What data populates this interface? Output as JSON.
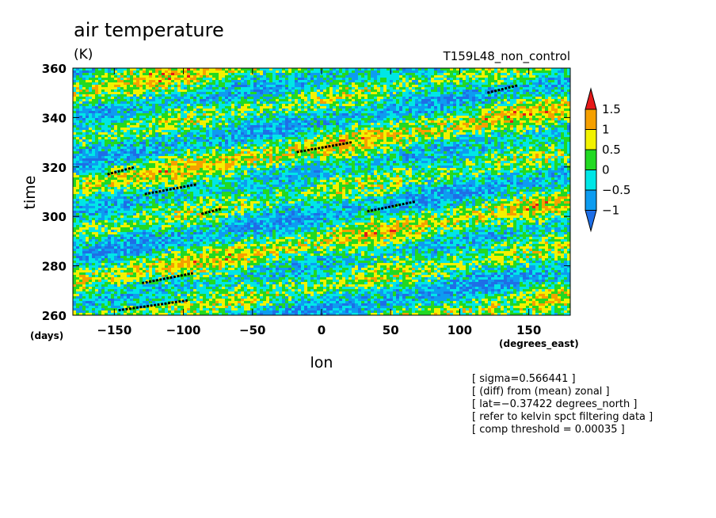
{
  "chart_data": {
    "type": "heatmap",
    "title": "air temperature",
    "units": "(K)",
    "run_label": "T159L48_non_control",
    "xlabel": "lon",
    "ylabel": "time",
    "x_units": "(degrees_east)",
    "y_units": "(days)",
    "xlim": [
      -180,
      180
    ],
    "ylim": [
      260,
      360
    ],
    "x_ticks": [
      -150,
      -100,
      -50,
      0,
      50,
      100,
      150
    ],
    "y_ticks": [
      260,
      280,
      300,
      320,
      340,
      360
    ],
    "x_tick_labels": [
      "−150",
      "−100",
      "−50",
      "0",
      "50",
      "100",
      "150"
    ],
    "y_tick_labels": [
      "260",
      "280",
      "300",
      "320",
      "340",
      "360"
    ],
    "colorbar": {
      "levels": [
        -1,
        -0.5,
        0,
        0.5,
        1,
        1.5
      ],
      "labels": [
        "−1",
        "−0.5",
        "0",
        "0.5",
        "1",
        "1.5"
      ],
      "colors": [
        "#1e6ee6",
        "#0d9cf0",
        "#00e6e6",
        "#22d922",
        "#f2f200",
        "#f5a000",
        "#e61919"
      ]
    },
    "kelvin_tracks": [
      {
        "lon": [
          -155,
          -135
        ],
        "time": [
          317,
          320
        ]
      },
      {
        "lon": [
          -128,
          -90
        ],
        "time": [
          309,
          313
        ]
      },
      {
        "lon": [
          -87,
          -73
        ],
        "time": [
          301,
          303
        ]
      },
      {
        "lon": [
          -18,
          22
        ],
        "time": [
          326,
          330
        ]
      },
      {
        "lon": [
          33,
          68
        ],
        "time": [
          302,
          306
        ]
      },
      {
        "lon": [
          120,
          142
        ],
        "time": [
          350,
          353
        ]
      },
      {
        "lon": [
          -130,
          -93
        ],
        "time": [
          273,
          277
        ]
      },
      {
        "lon": [
          -147,
          -97
        ],
        "time": [
          262,
          266
        ]
      }
    ],
    "annotations": [
      "[ sigma=0.566441 ]",
      "[ (diff) from (mean) zonal ]",
      "[ lat=−0.37422 degrees_north ]",
      "[ refer to kelvin spct filtering data ]",
      "[ comp threshold = 0.00035 ]"
    ]
  }
}
